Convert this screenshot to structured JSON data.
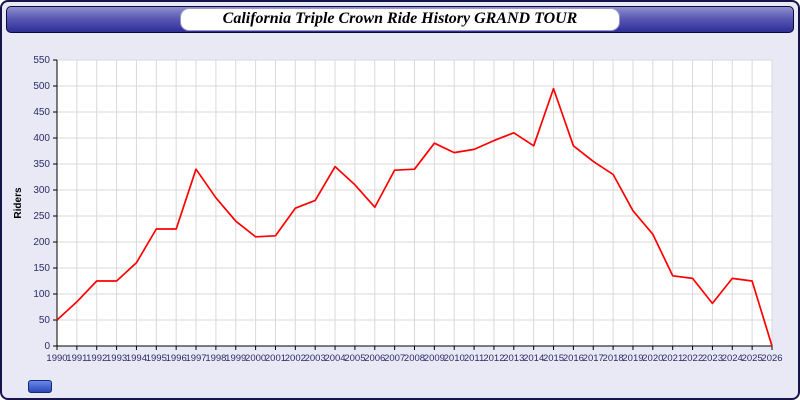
{
  "header": {
    "title": "California Triple Crown Ride History GRAND TOUR"
  },
  "chart_data": {
    "type": "line",
    "title": "California Triple Crown Ride History GRAND TOUR",
    "xlabel": "",
    "ylabel": "Riders",
    "ylim": [
      0,
      550
    ],
    "ytick_step": 50,
    "grid": true,
    "legend": false,
    "line_color": "#ff0000",
    "tick_label_color": "#2b2b66",
    "x": [
      1990,
      1991,
      1992,
      1993,
      1994,
      1995,
      1996,
      1997,
      1998,
      1999,
      2000,
      2001,
      2002,
      2003,
      2004,
      2005,
      2006,
      2007,
      2008,
      2009,
      2010,
      2011,
      2012,
      2013,
      2014,
      2015,
      2016,
      2017,
      2018,
      2019,
      2020,
      2021,
      2022,
      2023,
      2024,
      2025,
      2026
    ],
    "series": [
      {
        "name": "Riders",
        "values": [
          50,
          85,
          125,
          125,
          160,
          225,
          225,
          340,
          285,
          240,
          210,
          212,
          265,
          280,
          345,
          310,
          267,
          338,
          340,
          390,
          372,
          378,
          395,
          410,
          385,
          495,
          385,
          355,
          330,
          260,
          215,
          135,
          130,
          82,
          130,
          125,
          0
        ]
      }
    ]
  },
  "footer": {
    "badge_label": ""
  }
}
